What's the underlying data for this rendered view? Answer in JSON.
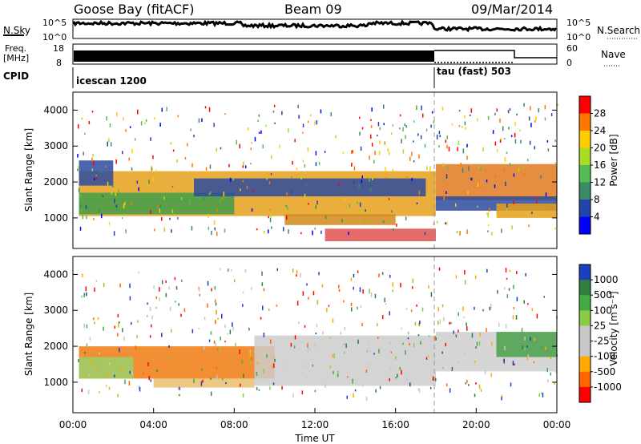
{
  "header": {
    "station": "Goose Bay (fitACF)",
    "beam": "Beam 09",
    "date": "09/Mar/2014"
  },
  "noise_panel": {
    "left_label": "N.Sky",
    "right_label": "N.Search",
    "left_ticks": [
      "10^5",
      "10^0"
    ],
    "right_ticks": [
      "10^5",
      "10^0"
    ]
  },
  "freq_panel": {
    "left_label_line1": "Freq.",
    "left_label_line2": "[MHz]",
    "right_label": "Nave",
    "left_ticks": [
      "18",
      "8"
    ],
    "right_ticks": [
      "60",
      "0"
    ]
  },
  "cpid_panel": {
    "label": "CPID",
    "programs": [
      {
        "name": "icescan 1200",
        "start_hour": 0
      },
      {
        "name": "tau (fast) 503",
        "start_hour": 18
      }
    ]
  },
  "chart_data": [
    {
      "type": "heatmap",
      "name": "power",
      "xlabel": "",
      "ylabel": "Slant Range [km]",
      "xlim_hours": [
        0,
        24
      ],
      "ylim": [
        150,
        4500
      ],
      "yticks": [
        1000,
        2000,
        3000,
        4000
      ],
      "ytick_labels": [
        "1000",
        "2000",
        "3000",
        "4000"
      ],
      "colorbar": {
        "label": "Power [dB]",
        "tick_labels": [
          "28",
          "24",
          "20",
          "16",
          "12",
          "8",
          "4"
        ],
        "colors": [
          "#ff0000",
          "#ff7700",
          "#ffcc00",
          "#aadd22",
          "#55bb55",
          "#3a8a66",
          "#2244aa",
          "#0000ff"
        ]
      },
      "regions": [
        {
          "x0": 0.3,
          "x1": 18,
          "y0": 1050,
          "y1": 2300,
          "color": "#e6a01a"
        },
        {
          "x0": 0.3,
          "x1": 8,
          "y0": 1100,
          "y1": 1700,
          "color": "#3f9d4a"
        },
        {
          "x0": 6,
          "x1": 17.5,
          "y0": 1600,
          "y1": 2100,
          "color": "#2c4b9e"
        },
        {
          "x0": 12.5,
          "x1": 18,
          "y0": 350,
          "y1": 700,
          "color": "#e05050"
        },
        {
          "x0": 10.5,
          "x1": 16,
          "y0": 800,
          "y1": 1100,
          "color": "#d08a1a"
        },
        {
          "x0": 18,
          "x1": 24,
          "y0": 1500,
          "y1": 2500,
          "color": "#e07a20"
        },
        {
          "x0": 18,
          "x1": 24,
          "y0": 1200,
          "y1": 1600,
          "color": "#2c4b9e"
        },
        {
          "x0": 21,
          "x1": 24,
          "y0": 1000,
          "y1": 1400,
          "color": "#e6a01a"
        },
        {
          "x0": 0.3,
          "x1": 2,
          "y0": 1900,
          "y1": 2600,
          "color": "#2c4b9e"
        }
      ]
    },
    {
      "type": "heatmap",
      "name": "velocity",
      "xlabel": "Time UT",
      "ylabel": "Slant Range [km]",
      "xlim_hours": [
        0,
        24
      ],
      "xticks": [
        0,
        4,
        8,
        12,
        16,
        20,
        24
      ],
      "xtick_labels": [
        "00:00",
        "04:00",
        "08:00",
        "12:00",
        "16:00",
        "20:00",
        "00:00"
      ],
      "ylim": [
        150,
        4500
      ],
      "yticks": [
        1000,
        2000,
        3000,
        4000
      ],
      "ytick_labels": [
        "1000",
        "2000",
        "3000",
        "4000"
      ],
      "colorbar": {
        "label": "Velocity [m s⁻¹]",
        "tick_labels": [
          "1000",
          "500",
          "100",
          "25",
          "-25",
          "-100",
          "-500",
          "-1000"
        ],
        "colors": [
          "#1a3fbf",
          "#2f7f3f",
          "#44aa44",
          "#88cc44",
          "#c8c8c8",
          "#c8c8c8",
          "#ffaa00",
          "#ff6600",
          "#ff0000"
        ]
      },
      "regions": [
        {
          "x0": 0.3,
          "x1": 10,
          "y0": 1100,
          "y1": 2000,
          "color": "#f07a10"
        },
        {
          "x0": 0.3,
          "x1": 3,
          "y0": 1100,
          "y1": 1700,
          "color": "#9bd16b"
        },
        {
          "x0": 9,
          "x1": 18,
          "y0": 900,
          "y1": 2300,
          "color": "#cccccc"
        },
        {
          "x0": 18,
          "x1": 24,
          "y0": 1300,
          "y1": 2400,
          "color": "#cfcfcf"
        },
        {
          "x0": 21,
          "x1": 24,
          "y0": 1700,
          "y1": 2400,
          "color": "#4aa04a"
        },
        {
          "x0": 4,
          "x1": 9,
          "y0": 850,
          "y1": 1100,
          "color": "#e8c070"
        }
      ]
    }
  ]
}
